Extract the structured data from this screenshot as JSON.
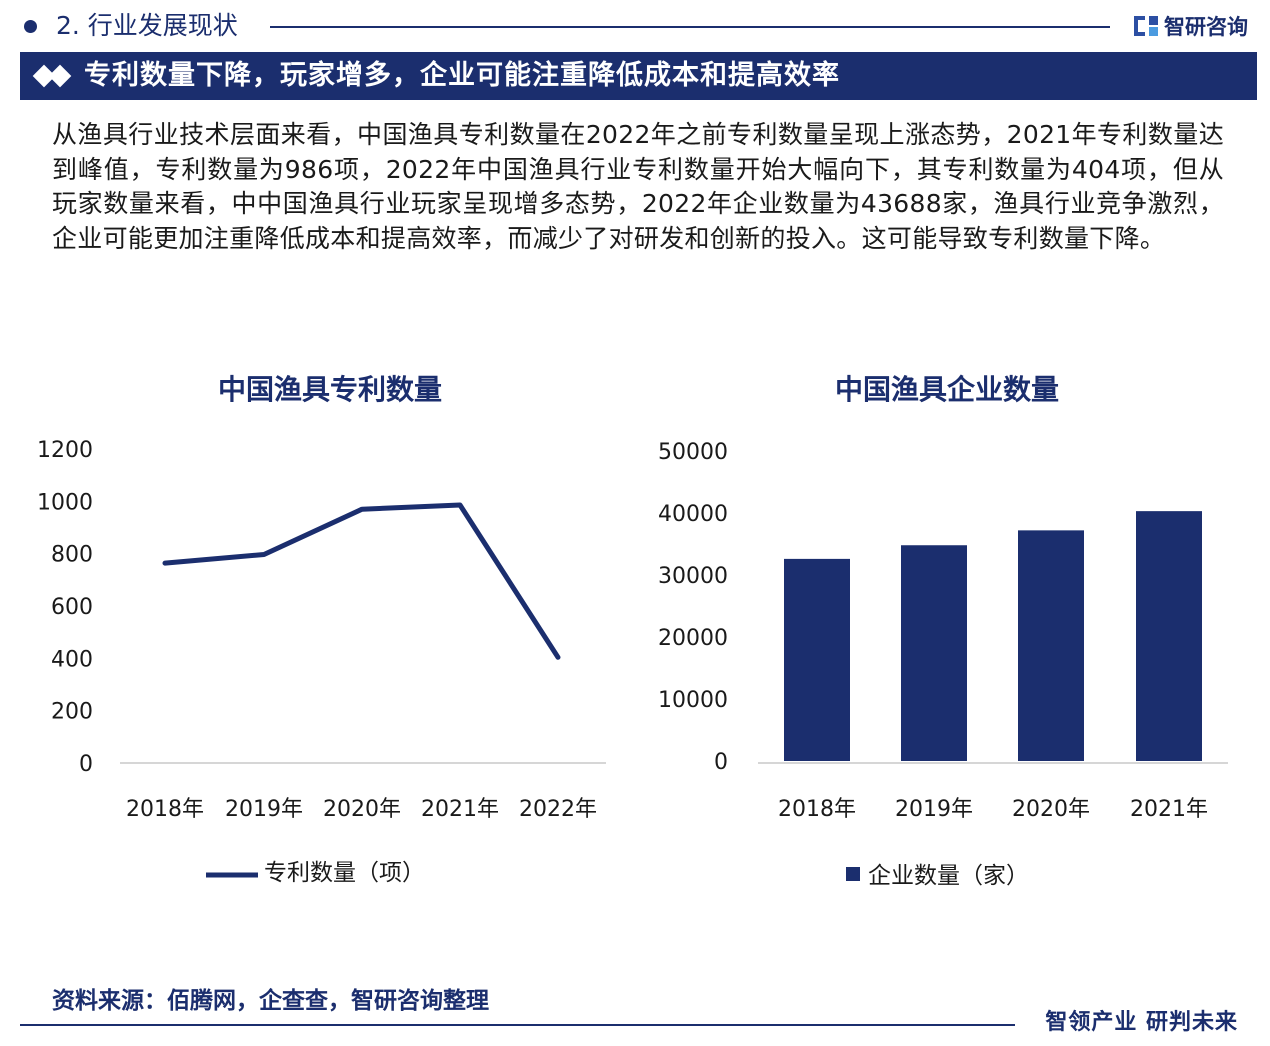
{
  "header": {
    "section_title": "2. 行业发展现状",
    "logo_text": "智研咨询"
  },
  "banner": {
    "title": "专利数量下降，玩家增多，企业可能注重降低成本和提高效率"
  },
  "body_text": "从渔具行业技术层面来看，中国渔具专利数量在2022年之前专利数量呈现上涨态势，2021年专利数量达到峰值，专利数量为986项，2022年中国渔具行业专利数量开始大幅向下，其专利数量为404项，但从玩家数量来看，中中国渔具行业玩家呈现增多态势，2022年企业数量为43688家，渔具行业竞争激烈，企业可能更加注重降低成本和提高效率，而减少了对研发和创新的投入。这可能导致专利数量下降。",
  "chart_data": [
    {
      "type": "line",
      "title": "中国渔具专利数量",
      "categories": [
        "2018年",
        "2019年",
        "2020年",
        "2021年",
        "2022年"
      ],
      "series": [
        {
          "name": "专利数量（项）",
          "values": [
            764,
            797,
            970,
            986,
            404
          ],
          "color": "#1b2e6e"
        }
      ],
      "ylim": [
        0,
        1200
      ],
      "yticks": [
        0,
        200,
        400,
        600,
        800,
        1000,
        1200
      ],
      "grid": false,
      "legend": "bottom"
    },
    {
      "type": "bar",
      "title": "中国渔具企业数量",
      "categories": [
        "2018年",
        "2019年",
        "2020年",
        "2021年"
      ],
      "series": [
        {
          "name": "企业数量（家）",
          "values": [
            32600,
            34800,
            37200,
            40300
          ],
          "color": "#1b2e6e"
        }
      ],
      "ylim": [
        0,
        50000
      ],
      "yticks": [
        0,
        10000,
        20000,
        30000,
        40000,
        50000
      ],
      "grid": false,
      "legend": "bottom"
    }
  ],
  "footer": {
    "source": "资料来源：佰腾网，企查查，智研咨询整理",
    "slogan": "智领产业 研判未来"
  }
}
